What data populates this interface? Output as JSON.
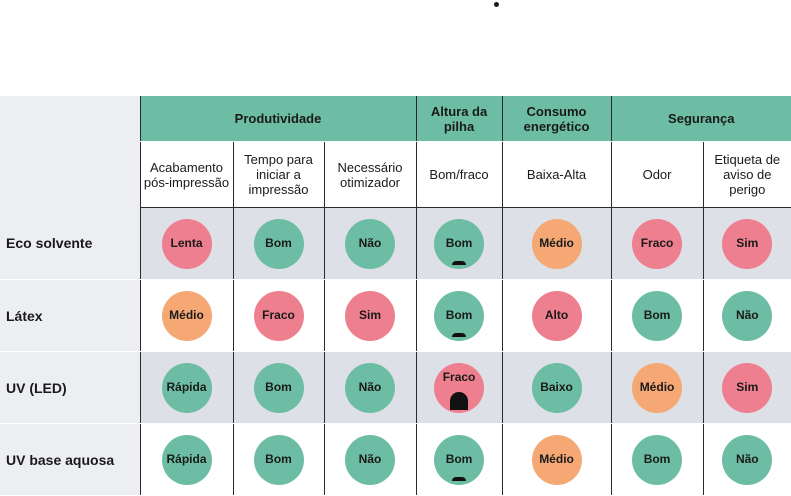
{
  "colors": {
    "green": "#6cbda4",
    "red": "#ee7f8e",
    "orange": "#f5a874"
  },
  "groups": [
    "Produtividade",
    "Altura da pilha",
    "Consumo energético",
    "Segurança"
  ],
  "subheaders": [
    "Acabamento pós-impressão",
    "Tempo para iniciar a impressão",
    "Necessário otimizador",
    "Bom/fraco",
    "Baixa-Alta",
    "Odor",
    "Etiqueta de aviso de perigo"
  ],
  "rows": [
    {
      "label": "Eco solvente",
      "cells": [
        {
          "text": "Lenta",
          "color": "red"
        },
        {
          "text": "Bom",
          "color": "green"
        },
        {
          "text": "Não",
          "color": "green"
        },
        {
          "text": "Bom",
          "color": "green",
          "pile": "small"
        },
        {
          "text": "Médio",
          "color": "orange"
        },
        {
          "text": "Fraco",
          "color": "red"
        },
        {
          "text": "Sim",
          "color": "red"
        }
      ]
    },
    {
      "label": "Látex",
      "cells": [
        {
          "text": "Médio",
          "color": "orange"
        },
        {
          "text": "Fraco",
          "color": "red"
        },
        {
          "text": "Sim",
          "color": "red"
        },
        {
          "text": "Bom",
          "color": "green",
          "pile": "small"
        },
        {
          "text": "Alto",
          "color": "red"
        },
        {
          "text": "Bom",
          "color": "green"
        },
        {
          "text": "Não",
          "color": "green"
        }
      ]
    },
    {
      "label": "UV (LED)",
      "cells": [
        {
          "text": "Rápida",
          "color": "green"
        },
        {
          "text": "Bom",
          "color": "green"
        },
        {
          "text": "Não",
          "color": "green"
        },
        {
          "text": "Fraco",
          "color": "red",
          "pile": "tall"
        },
        {
          "text": "Baixo",
          "color": "green"
        },
        {
          "text": "Médio",
          "color": "orange"
        },
        {
          "text": "Sim",
          "color": "red"
        }
      ]
    },
    {
      "label": "UV base aquosa",
      "cells": [
        {
          "text": "Rápida",
          "color": "green"
        },
        {
          "text": "Bom",
          "color": "green"
        },
        {
          "text": "Não",
          "color": "green"
        },
        {
          "text": "Bom",
          "color": "green",
          "pile": "small"
        },
        {
          "text": "Médio",
          "color": "orange"
        },
        {
          "text": "Bom",
          "color": "green"
        },
        {
          "text": "Não",
          "color": "green"
        }
      ]
    }
  ]
}
